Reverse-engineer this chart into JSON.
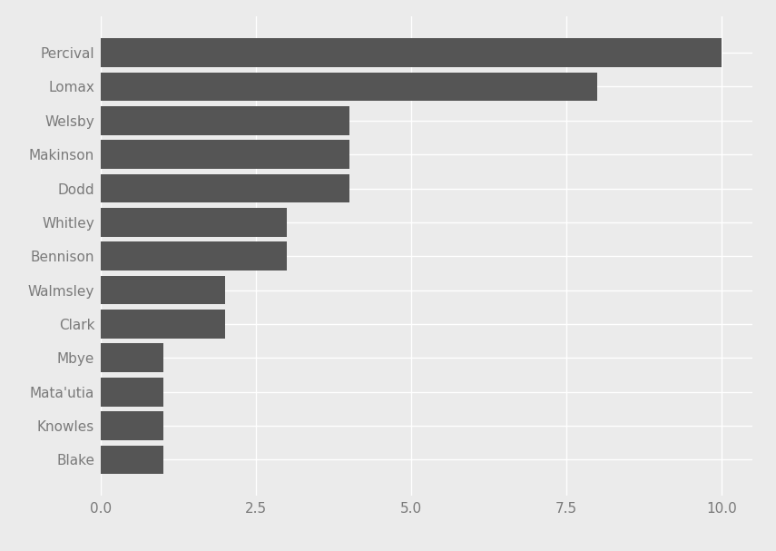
{
  "categories": [
    "Blake",
    "Knowles",
    "Mata'utia",
    "Mbye",
    "Clark",
    "Walmsley",
    "Bennison",
    "Whitley",
    "Dodd",
    "Makinson",
    "Welsby",
    "Lomax",
    "Percival"
  ],
  "values": [
    1,
    1,
    1,
    1,
    2,
    2,
    3,
    3,
    4,
    4,
    4,
    8,
    10
  ],
  "bar_color": "#555555",
  "background_color": "#ebebeb",
  "xlim_max": 10.5,
  "xticks": [
    0.0,
    2.5,
    5.0,
    7.5,
    10.0
  ],
  "xticklabels": [
    "0.0",
    "2.5",
    "5.0",
    "7.5",
    "10.0"
  ],
  "tick_label_color": "#7a7a7a",
  "tick_label_fontsize": 11,
  "grid_color": "#ffffff",
  "grid_linewidth": 1.0,
  "bar_height": 0.85
}
